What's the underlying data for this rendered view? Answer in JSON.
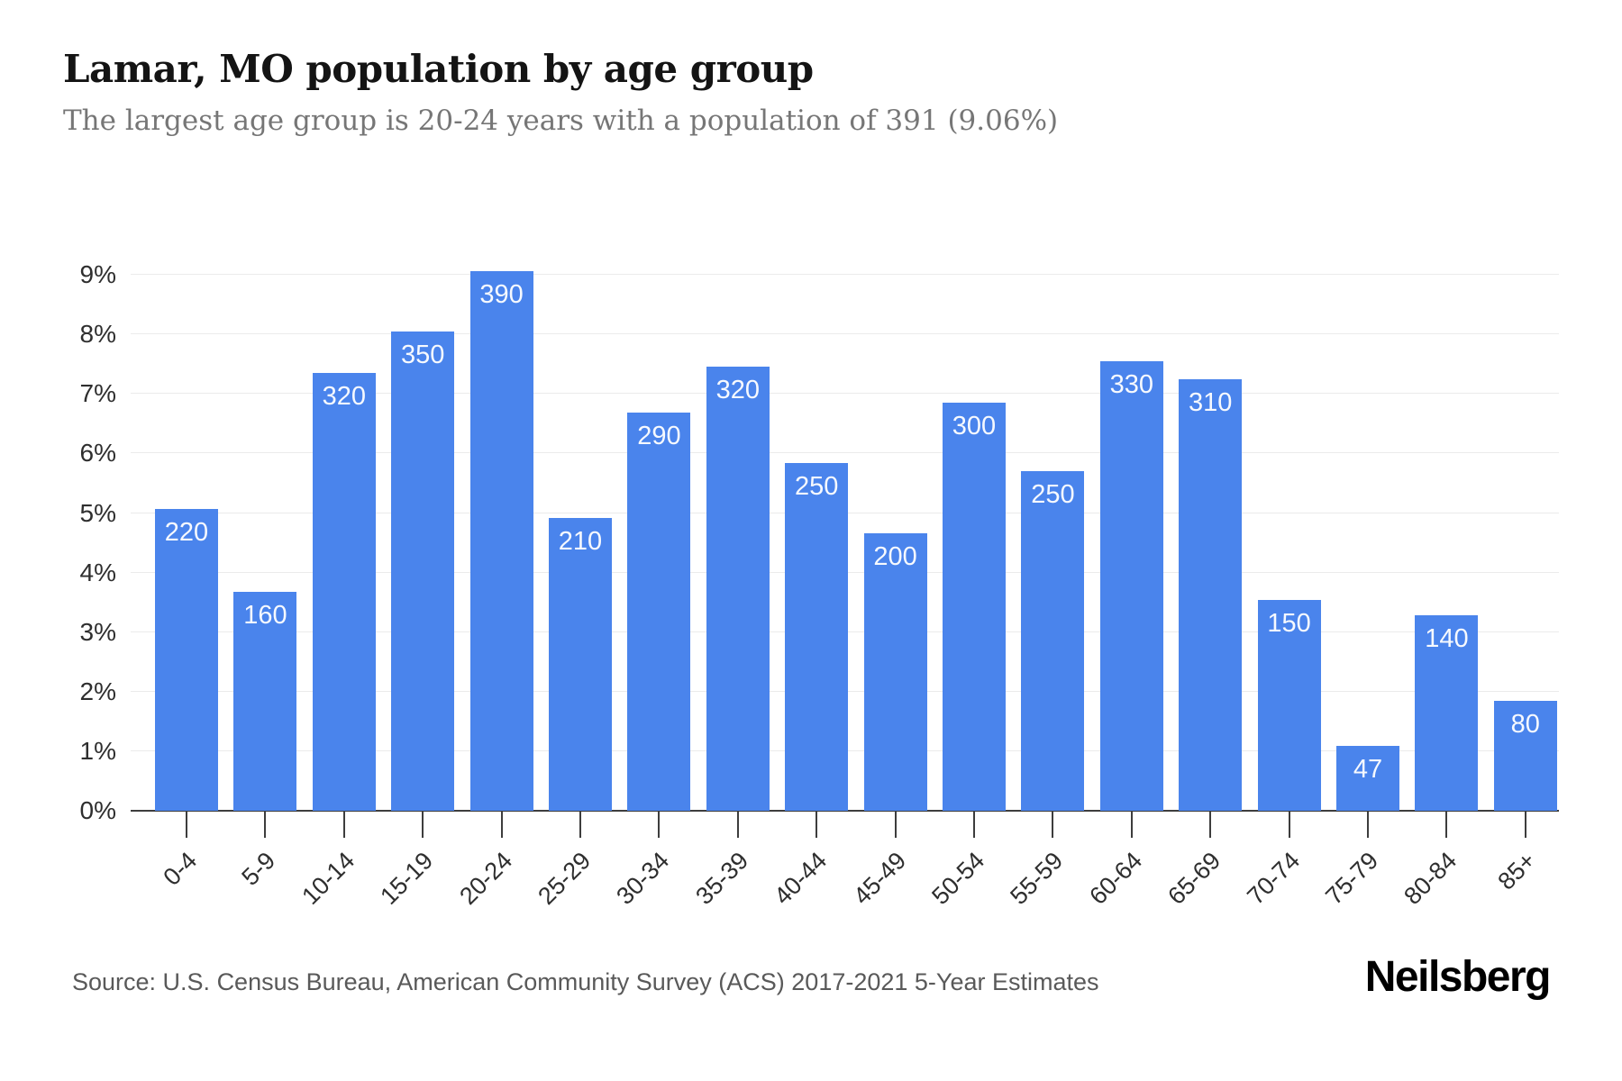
{
  "header": {
    "title": "Lamar, MO population by age group",
    "subtitle": "The largest age group is 20-24 years with a population of 391 (9.06%)"
  },
  "footer": {
    "source": "Source: U.S. Census Bureau, American Community Survey (ACS) 2017-2021 5-Year Estimates",
    "brand": "Neilsberg"
  },
  "colors": {
    "bar": "#4a84ec",
    "bar_label": "rgba(255,255,255,0.95)",
    "grid": "#ebebeb",
    "axis": "#3d3d3d",
    "title": "#141414",
    "subtitle": "#767676",
    "text": "#2e2e2e",
    "muted": "#595959"
  },
  "chart_data": {
    "type": "bar",
    "title": "Lamar, MO population by age group",
    "xlabel": "",
    "ylabel": "",
    "categories": [
      "0-4",
      "5-9",
      "10-14",
      "15-19",
      "20-24",
      "25-29",
      "30-34",
      "35-39",
      "40-44",
      "45-49",
      "50-54",
      "55-59",
      "60-64",
      "65-69",
      "70-74",
      "75-79",
      "80-84",
      "85+"
    ],
    "values": [
      220,
      160,
      320,
      350,
      390,
      210,
      290,
      320,
      250,
      200,
      300,
      250,
      330,
      310,
      150,
      47,
      140,
      80
    ],
    "percentages": [
      5.07,
      3.68,
      7.35,
      8.05,
      9.06,
      4.92,
      6.69,
      7.46,
      5.84,
      4.66,
      6.85,
      5.7,
      7.55,
      7.25,
      3.54,
      1.09,
      3.28,
      1.85
    ],
    "y_ticks": [
      "0%",
      "1%",
      "2%",
      "3%",
      "4%",
      "5%",
      "6%",
      "7%",
      "8%",
      "9%"
    ],
    "ylim": [
      0,
      9.8
    ],
    "grid": true,
    "legend": "none",
    "bar_value_labels": "inside-top"
  }
}
